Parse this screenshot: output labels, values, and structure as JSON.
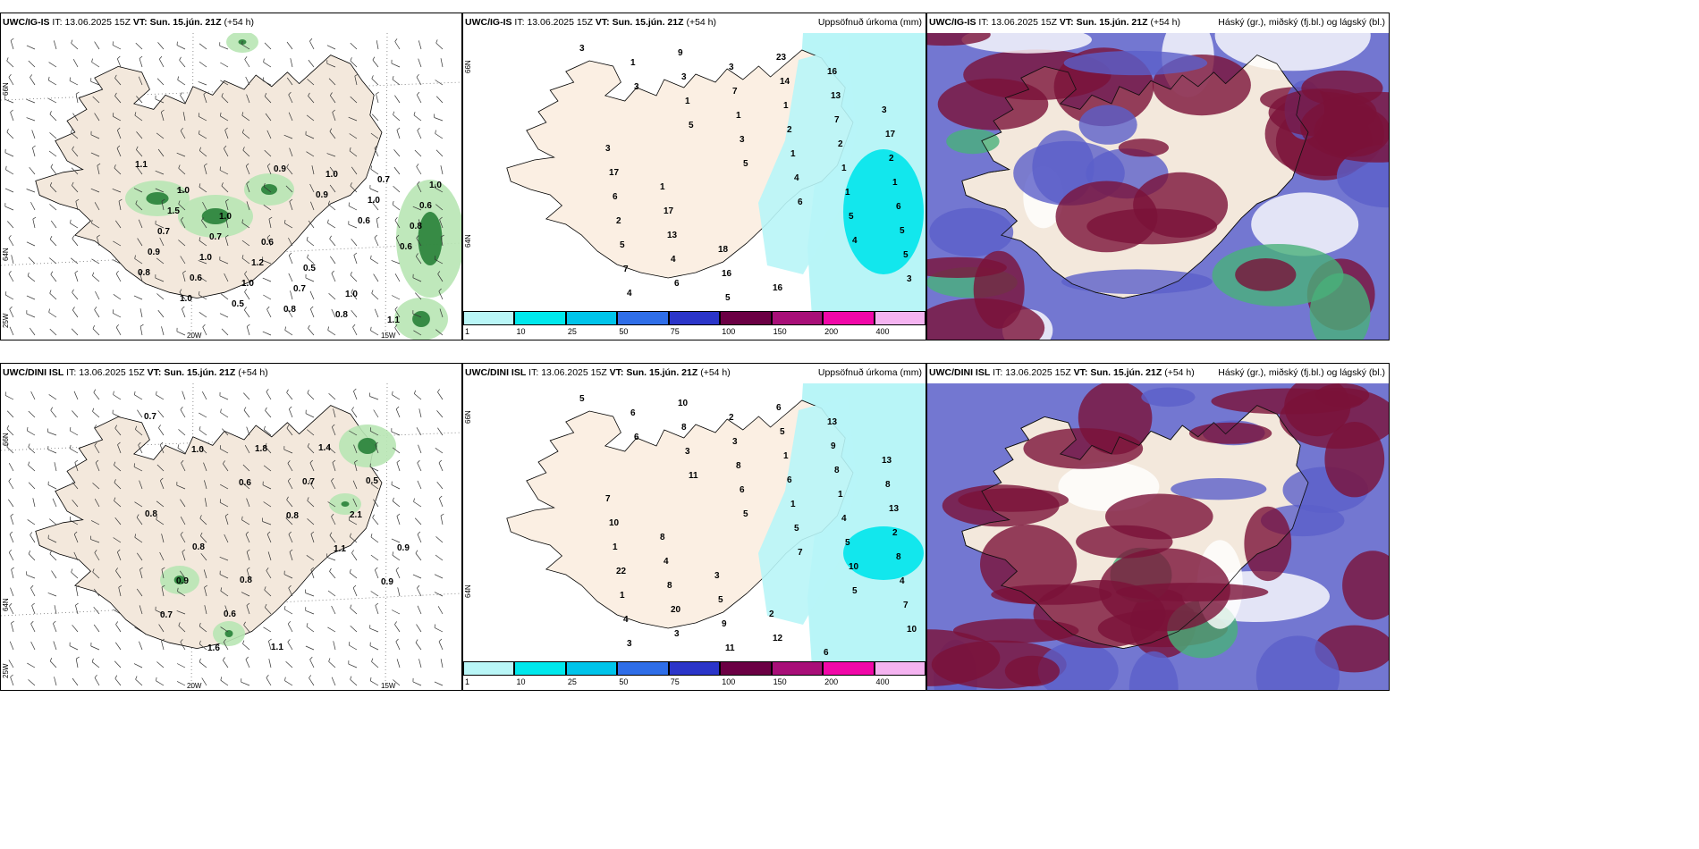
{
  "rows": [
    {
      "panels": [
        {
          "model": "UWC/IG-IS",
          "it_label": "IT:",
          "it": "13.06.2025 15Z",
          "vt_label": "VT:",
          "vt": "Sun. 15.jún. 21Z",
          "lead": "(+54 h)",
          "right_title": ""
        },
        {
          "model": "UWC/IG-IS",
          "it_label": "IT:",
          "it": "13.06.2025 15Z",
          "vt_label": "VT:",
          "vt": "Sun. 15.jún. 21Z",
          "lead": "(+54 h)",
          "right_title": "Uppsöfnuð úrkoma (mm)"
        },
        {
          "model": "UWC/IG-IS",
          "it_label": "IT:",
          "it": "13.06.2025 15Z",
          "vt_label": "VT:",
          "vt": "Sun. 15.jún. 21Z",
          "lead": "(+54 h)",
          "right_title": "Háský (gr.), miðský (fj.bl.) og lágský (bl.)"
        }
      ],
      "wind_values": [
        "1.1",
        "1.0",
        "1.0",
        "0.6",
        "0.5",
        "1.0",
        "1.1",
        "1.0",
        "1.5",
        "0.7",
        "1.2",
        "0.7",
        "0.8",
        "0.7",
        "0.6",
        "0.7",
        "1.0",
        "1.0",
        "0.8",
        "1.0",
        "1.0",
        "0.8",
        "0.9",
        "0.6",
        "0.5",
        "0.9",
        "0.9",
        "0.6",
        "0.6",
        "0.8",
        "1.0"
      ],
      "precip_values": [
        "3",
        "3",
        "5",
        "5",
        "6",
        "4",
        "3",
        "1",
        "1",
        "3",
        "4",
        "5",
        "5",
        "4",
        "3",
        "1",
        "1",
        "1",
        "5",
        "7",
        "9",
        "7",
        "2",
        "1",
        "6",
        "5",
        "6",
        "3",
        "1",
        "2",
        "1",
        "2",
        "4",
        "5",
        "14",
        "7",
        "2",
        "6",
        "13",
        "16",
        "23",
        "13",
        "17",
        "17",
        "17",
        "18",
        "16",
        "16",
        "3",
        "3",
        "1"
      ]
    },
    {
      "panels": [
        {
          "model": "UWC/DINI ISL",
          "it_label": "IT:",
          "it": "13.06.2025 15Z",
          "vt_label": "VT:",
          "vt": "Sun. 15.jún. 21Z",
          "lead": "(+54 h)",
          "right_title": ""
        },
        {
          "model": "UWC/DINI ISL",
          "it_label": "IT:",
          "it": "13.06.2025 15Z",
          "vt_label": "VT:",
          "vt": "Sun. 15.jún. 21Z",
          "lead": "(+54 h)",
          "right_title": "Uppsöfnuð úrkoma (mm)"
        },
        {
          "model": "UWC/DINI ISL",
          "it_label": "IT:",
          "it": "13.06.2025 15Z",
          "vt_label": "VT:",
          "vt": "Sun. 15.jún. 21Z",
          "lead": "(+54 h)",
          "right_title": "Háský (gr.), miðský (fj.bl.) og lágský (bl.)"
        }
      ],
      "wind_values": [
        "0.7",
        "1.0",
        "0.6",
        "0.8",
        "1.1",
        "0.9",
        "0.7",
        "1.6",
        "1.8",
        "0.7",
        "2.1",
        "0.9",
        "0.9",
        "0.6",
        "1.1",
        "1.4",
        "0.5",
        "0.8",
        "0.8",
        "0.8"
      ],
      "precip_values": [
        "5",
        "6",
        "11",
        "5",
        "7",
        "5",
        "10",
        "6",
        "3",
        "6",
        "5",
        "10",
        "7",
        "3",
        "8",
        "8",
        "1",
        "5",
        "4",
        "4",
        "10",
        "3",
        "6",
        "4",
        "8",
        "1",
        "3",
        "2",
        "1",
        "1",
        "2",
        "22",
        "20",
        "11",
        "5",
        "8",
        "13",
        "1",
        "8",
        "9",
        "6",
        "9",
        "8",
        "10",
        "4",
        "5",
        "12",
        "13",
        "13",
        "7",
        "8",
        "3",
        "2",
        "6"
      ]
    }
  ],
  "axis_labels": {
    "lat66": "66N",
    "lat64": "64N",
    "lon25": "25W",
    "lon20": "20W",
    "lon15": "15W"
  },
  "legend": {
    "ticks": [
      "1",
      "10",
      "25",
      "50",
      "75",
      "100",
      "150",
      "200",
      "400"
    ],
    "colors": [
      "#b9f6f7",
      "#00e8ec",
      "#00c4ea",
      "#2f6ee8",
      "#2b35c9",
      "#6b0044",
      "#a80f78",
      "#f008a8",
      "#f4b3f0"
    ]
  },
  "colors": {
    "land": "#f3e8dc",
    "precip_light": "#b8f5f7",
    "precip_mid": "#00e6eb",
    "wind_green_light": "#b8e5b4",
    "wind_green_dark": "#1e7a30",
    "cloud_high": "#7a1238",
    "cloud_mid": "#5b5fc9",
    "cloud_low": "#49b07a"
  }
}
